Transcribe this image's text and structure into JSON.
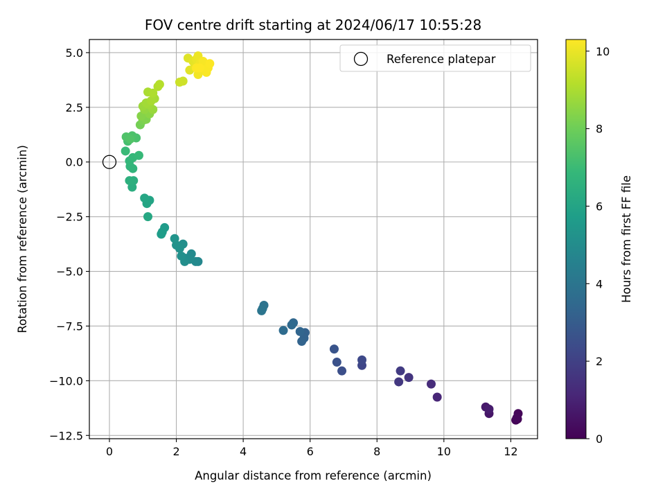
{
  "chart_data": {
    "type": "scatter",
    "title": "FOV centre drift starting at 2024/06/17 10:55:28",
    "xlabel": "Angular distance from reference (arcmin)",
    "ylabel": "Rotation from reference (arcmin)",
    "xlim": [
      -0.6,
      12.8
    ],
    "ylim": [
      -12.65,
      5.6
    ],
    "xticks": [
      0,
      2,
      4,
      6,
      8,
      10,
      12
    ],
    "yticks": [
      5.0,
      2.5,
      0.0,
      -2.5,
      -5.0,
      -7.5,
      -10.0,
      -12.5
    ],
    "ytick_labels": [
      "5.0",
      "2.5",
      "0.0",
      "−2.5",
      "−5.0",
      "−7.5",
      "−10.0",
      "−12.5"
    ],
    "grid": true,
    "legend": {
      "placement": "top-right",
      "entries": [
        {
          "label": "Reference platepar",
          "marker": "hollow-circle"
        }
      ]
    },
    "reference_point": {
      "x": 0,
      "y": 0
    },
    "colorbar": {
      "label": "Hours from first FF file",
      "colormap": "viridis",
      "range": [
        0,
        10.3
      ],
      "ticks": [
        0,
        2,
        4,
        6,
        8,
        10
      ],
      "stops": [
        "#440154",
        "#482878",
        "#3e4989",
        "#31688e",
        "#26828e",
        "#1f9e89",
        "#35b779",
        "#6ece58",
        "#b5de2b",
        "#fde725"
      ]
    },
    "points": [
      {
        "x": 12.2,
        "y": -11.75,
        "c": 0.05
      },
      {
        "x": 12.15,
        "y": -11.8,
        "c": 0.1
      },
      {
        "x": 12.22,
        "y": -11.5,
        "c": 0.15
      },
      {
        "x": 12.18,
        "y": -11.7,
        "c": 0.2
      },
      {
        "x": 11.35,
        "y": -11.5,
        "c": 0.6
      },
      {
        "x": 11.25,
        "y": -11.2,
        "c": 0.7
      },
      {
        "x": 11.35,
        "y": -11.3,
        "c": 0.8
      },
      {
        "x": 9.8,
        "y": -10.75,
        "c": 1.1
      },
      {
        "x": 9.62,
        "y": -10.15,
        "c": 1.3
      },
      {
        "x": 8.95,
        "y": -9.85,
        "c": 1.6
      },
      {
        "x": 8.65,
        "y": -10.05,
        "c": 1.7
      },
      {
        "x": 8.7,
        "y": -9.55,
        "c": 1.8
      },
      {
        "x": 7.55,
        "y": -9.3,
        "c": 2.2
      },
      {
        "x": 7.55,
        "y": -9.05,
        "c": 2.3
      },
      {
        "x": 6.95,
        "y": -9.55,
        "c": 2.5
      },
      {
        "x": 6.8,
        "y": -9.15,
        "c": 2.6
      },
      {
        "x": 6.72,
        "y": -8.55,
        "c": 2.7
      },
      {
        "x": 5.85,
        "y": -7.8,
        "c": 3.2
      },
      {
        "x": 5.82,
        "y": -8.05,
        "c": 3.25
      },
      {
        "x": 5.75,
        "y": -8.2,
        "c": 3.3
      },
      {
        "x": 5.7,
        "y": -7.75,
        "c": 3.35
      },
      {
        "x": 5.5,
        "y": -7.35,
        "c": 3.45
      },
      {
        "x": 5.45,
        "y": -7.45,
        "c": 3.5
      },
      {
        "x": 5.2,
        "y": -7.7,
        "c": 3.6
      },
      {
        "x": 4.62,
        "y": -6.55,
        "c": 3.9
      },
      {
        "x": 4.58,
        "y": -6.7,
        "c": 3.95
      },
      {
        "x": 4.55,
        "y": -6.8,
        "c": 4.0
      },
      {
        "x": 2.65,
        "y": -4.55,
        "c": 4.8
      },
      {
        "x": 2.58,
        "y": -4.55,
        "c": 4.85
      },
      {
        "x": 2.45,
        "y": -4.2,
        "c": 4.9
      },
      {
        "x": 2.4,
        "y": -4.45,
        "c": 4.95
      },
      {
        "x": 2.28,
        "y": -4.4,
        "c": 5.0
      },
      {
        "x": 2.25,
        "y": -4.55,
        "c": 5.05
      },
      {
        "x": 2.2,
        "y": -3.75,
        "c": 5.1
      },
      {
        "x": 2.15,
        "y": -4.3,
        "c": 5.15
      },
      {
        "x": 2.1,
        "y": -3.95,
        "c": 5.2
      },
      {
        "x": 2.0,
        "y": -3.8,
        "c": 5.25
      },
      {
        "x": 1.95,
        "y": -3.5,
        "c": 5.3
      },
      {
        "x": 1.65,
        "y": -3.0,
        "c": 5.6
      },
      {
        "x": 1.58,
        "y": -3.2,
        "c": 5.65
      },
      {
        "x": 1.55,
        "y": -3.3,
        "c": 5.7
      },
      {
        "x": 1.2,
        "y": -1.75,
        "c": 6.0
      },
      {
        "x": 1.12,
        "y": -1.9,
        "c": 6.05
      },
      {
        "x": 1.05,
        "y": -1.65,
        "c": 6.1
      },
      {
        "x": 1.15,
        "y": -2.5,
        "c": 6.15
      },
      {
        "x": 0.68,
        "y": -1.15,
        "c": 6.4
      },
      {
        "x": 0.72,
        "y": -0.85,
        "c": 6.45
      },
      {
        "x": 0.6,
        "y": -0.85,
        "c": 6.5
      },
      {
        "x": 0.7,
        "y": -0.3,
        "c": 6.7
      },
      {
        "x": 0.62,
        "y": -0.2,
        "c": 6.75
      },
      {
        "x": 0.6,
        "y": 0.05,
        "c": 6.8
      },
      {
        "x": 0.7,
        "y": 0.2,
        "c": 6.85
      },
      {
        "x": 0.88,
        "y": 0.3,
        "c": 6.9
      },
      {
        "x": 0.48,
        "y": 0.5,
        "c": 6.95
      },
      {
        "x": 0.55,
        "y": 0.95,
        "c": 7.2
      },
      {
        "x": 0.8,
        "y": 1.1,
        "c": 7.3
      },
      {
        "x": 0.68,
        "y": 1.2,
        "c": 7.35
      },
      {
        "x": 0.5,
        "y": 1.15,
        "c": 7.4
      },
      {
        "x": 0.62,
        "y": 1.05,
        "c": 7.45
      },
      {
        "x": 0.92,
        "y": 1.7,
        "c": 8.1
      },
      {
        "x": 1.0,
        "y": 1.9,
        "c": 8.2
      },
      {
        "x": 1.1,
        "y": 1.95,
        "c": 8.3
      },
      {
        "x": 0.95,
        "y": 2.1,
        "c": 8.4
      },
      {
        "x": 1.2,
        "y": 2.2,
        "c": 8.5
      },
      {
        "x": 1.05,
        "y": 2.4,
        "c": 8.6
      },
      {
        "x": 1.3,
        "y": 2.4,
        "c": 8.7
      },
      {
        "x": 1.0,
        "y": 2.55,
        "c": 8.75
      },
      {
        "x": 1.2,
        "y": 2.6,
        "c": 8.8
      },
      {
        "x": 1.1,
        "y": 2.7,
        "c": 8.85
      },
      {
        "x": 1.35,
        "y": 2.9,
        "c": 8.9
      },
      {
        "x": 1.25,
        "y": 2.8,
        "c": 8.95
      },
      {
        "x": 1.15,
        "y": 3.2,
        "c": 9.0
      },
      {
        "x": 1.3,
        "y": 3.15,
        "c": 9.05
      },
      {
        "x": 1.45,
        "y": 3.45,
        "c": 9.1
      },
      {
        "x": 1.5,
        "y": 3.55,
        "c": 9.15
      },
      {
        "x": 2.1,
        "y": 3.65,
        "c": 9.5
      },
      {
        "x": 2.2,
        "y": 3.7,
        "c": 9.55
      },
      {
        "x": 2.35,
        "y": 4.75,
        "c": 9.8
      },
      {
        "x": 2.4,
        "y": 4.2,
        "c": 9.85
      },
      {
        "x": 2.5,
        "y": 4.6,
        "c": 9.9
      },
      {
        "x": 2.55,
        "y": 4.35,
        "c": 9.95
      },
      {
        "x": 2.6,
        "y": 4.7,
        "c": 10.0
      },
      {
        "x": 2.65,
        "y": 4.85,
        "c": 10.05
      },
      {
        "x": 2.7,
        "y": 4.5,
        "c": 10.1
      },
      {
        "x": 2.65,
        "y": 4.0,
        "c": 10.12
      },
      {
        "x": 2.75,
        "y": 4.2,
        "c": 10.15
      },
      {
        "x": 2.8,
        "y": 4.6,
        "c": 10.2
      },
      {
        "x": 2.85,
        "y": 4.4,
        "c": 10.22
      },
      {
        "x": 2.9,
        "y": 4.1,
        "c": 10.24
      },
      {
        "x": 2.95,
        "y": 4.3,
        "c": 10.26
      },
      {
        "x": 3.0,
        "y": 4.5,
        "c": 10.28
      },
      {
        "x": 2.6,
        "y": 4.3,
        "c": 10.29
      },
      {
        "x": 2.7,
        "y": 4.3,
        "c": 10.3
      }
    ]
  }
}
